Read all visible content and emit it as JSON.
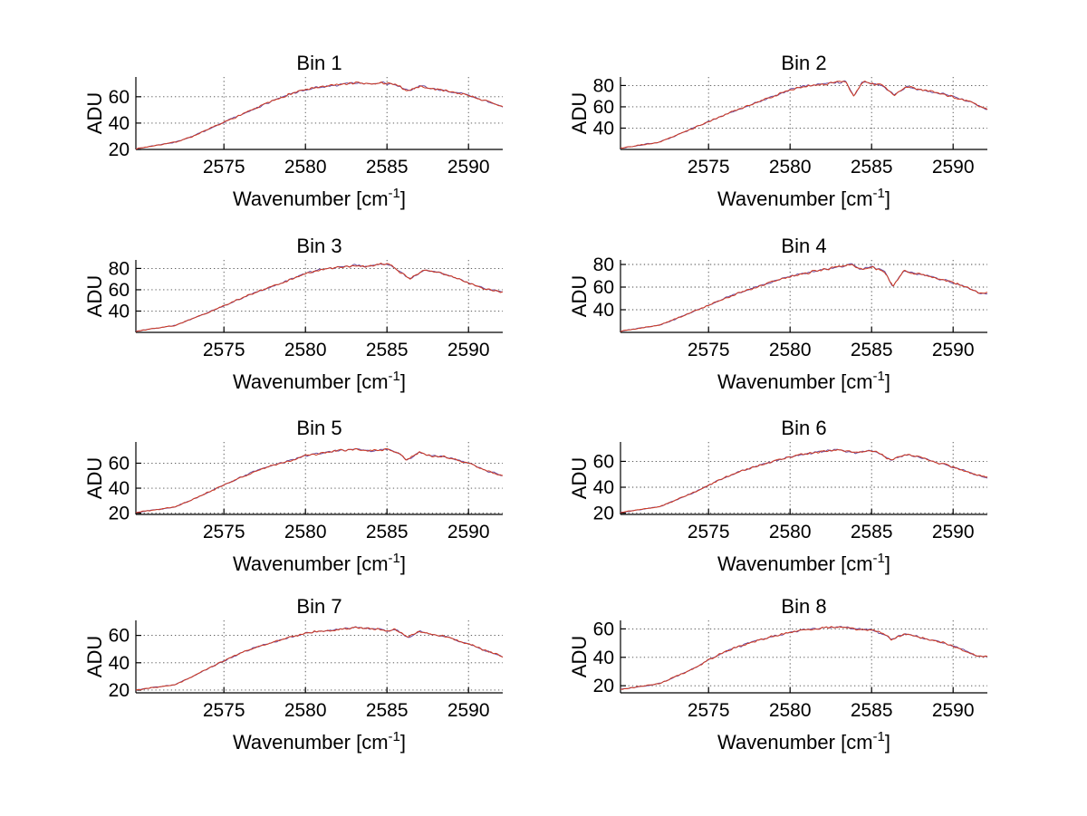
{
  "figure": {
    "background": "#ffffff",
    "ylabel": "ADU",
    "xlabel": "Wavenumber [cm^-1]",
    "xlabel_render": {
      "pre": "Wavenumber [cm",
      "sup": "-1",
      "post": "]"
    },
    "grid": "dotted",
    "legend": "none",
    "colors": {
      "axis": "#000000",
      "grid": "#474747",
      "text": "#000000",
      "line_under": "#6a4a9e",
      "line_top": "#cf3a20"
    }
  },
  "chart_data": [
    {
      "type": "line",
      "title": "Bin 1",
      "xlabel": "Wavenumber [cm^-1]",
      "ylabel": "ADU",
      "xlim": [
        2569.6,
        2592.1
      ],
      "ylim": [
        20,
        75
      ],
      "xticks": [
        2575,
        2580,
        2585,
        2590
      ],
      "yticks": [
        20,
        40,
        60
      ],
      "noise": 1.2,
      "points": [
        [
          2569.6,
          20.5
        ],
        [
          2572,
          25.5
        ],
        [
          2573,
          29.5
        ],
        [
          2574,
          35
        ],
        [
          2575,
          40.5
        ],
        [
          2576,
          46
        ],
        [
          2577,
          51.5
        ],
        [
          2578,
          57
        ],
        [
          2579,
          62
        ],
        [
          2580,
          65.5
        ],
        [
          2581,
          67.5
        ],
        [
          2582,
          69
        ],
        [
          2583,
          70.5
        ],
        [
          2584,
          69.5
        ],
        [
          2584.8,
          70.5
        ],
        [
          2585.5,
          69
        ],
        [
          2586.3,
          64.5
        ],
        [
          2587,
          68
        ],
        [
          2587.8,
          66
        ],
        [
          2588.5,
          65
        ],
        [
          2589.3,
          63
        ],
        [
          2590,
          61
        ],
        [
          2591,
          57
        ],
        [
          2592.1,
          52.5
        ]
      ]
    },
    {
      "type": "line",
      "title": "Bin 2",
      "xlabel": "Wavenumber [cm^-1]",
      "ylabel": "ADU",
      "xlim": [
        2569.6,
        2592.1
      ],
      "ylim": [
        20,
        88
      ],
      "xticks": [
        2575,
        2580,
        2585,
        2590
      ],
      "yticks": [
        40,
        60,
        80
      ],
      "noise": 1.5,
      "points": [
        [
          2569.6,
          21
        ],
        [
          2572,
          27
        ],
        [
          2573,
          33
        ],
        [
          2574,
          39.5
        ],
        [
          2575,
          46
        ],
        [
          2576,
          52.5
        ],
        [
          2577,
          58.5
        ],
        [
          2578,
          64.5
        ],
        [
          2579,
          70
        ],
        [
          2580,
          76
        ],
        [
          2580.8,
          79
        ],
        [
          2581.5,
          80.5
        ],
        [
          2582.5,
          82
        ],
        [
          2583.4,
          83.5
        ],
        [
          2583.9,
          70
        ],
        [
          2584.4,
          83
        ],
        [
          2585,
          82
        ],
        [
          2585.6,
          80.5
        ],
        [
          2586.4,
          71
        ],
        [
          2587.2,
          79
        ],
        [
          2588,
          76
        ],
        [
          2589,
          73.5
        ],
        [
          2590,
          69.5
        ],
        [
          2591,
          65
        ],
        [
          2592.1,
          57.5
        ]
      ]
    },
    {
      "type": "line",
      "title": "Bin 3",
      "xlabel": "Wavenumber [cm^-1]",
      "ylabel": "ADU",
      "xlim": [
        2569.6,
        2592.1
      ],
      "ylim": [
        20,
        88
      ],
      "xticks": [
        2575,
        2580,
        2585,
        2590
      ],
      "yticks": [
        40,
        60,
        80
      ],
      "noise": 1.4,
      "points": [
        [
          2569.6,
          21
        ],
        [
          2572,
          26.5
        ],
        [
          2573,
          32.5
        ],
        [
          2574,
          38.5
        ],
        [
          2575,
          45
        ],
        [
          2576,
          51.5
        ],
        [
          2577,
          58
        ],
        [
          2578,
          63.5
        ],
        [
          2579,
          69
        ],
        [
          2580,
          75.5
        ],
        [
          2581,
          79
        ],
        [
          2582,
          81
        ],
        [
          2583,
          83
        ],
        [
          2583.8,
          81.5
        ],
        [
          2584.6,
          84.5
        ],
        [
          2585.2,
          83.5
        ],
        [
          2586.4,
          70.5
        ],
        [
          2587.3,
          78.5
        ],
        [
          2588,
          77
        ],
        [
          2589,
          72.5
        ],
        [
          2590,
          66.5
        ],
        [
          2591,
          61
        ],
        [
          2592.1,
          57.5
        ]
      ]
    },
    {
      "type": "line",
      "title": "Bin 4",
      "xlabel": "Wavenumber [cm^-1]",
      "ylabel": "ADU",
      "xlim": [
        2569.6,
        2592.1
      ],
      "ylim": [
        20,
        84
      ],
      "xticks": [
        2575,
        2580,
        2585,
        2590
      ],
      "yticks": [
        40,
        60,
        80
      ],
      "noise": 1.4,
      "points": [
        [
          2569.6,
          21
        ],
        [
          2572,
          26.5
        ],
        [
          2573,
          32
        ],
        [
          2574,
          38
        ],
        [
          2575,
          44
        ],
        [
          2576,
          50
        ],
        [
          2577,
          55.5
        ],
        [
          2578,
          60.5
        ],
        [
          2579,
          65
        ],
        [
          2580,
          69.5
        ],
        [
          2581,
          72.5
        ],
        [
          2582,
          75.5
        ],
        [
          2583,
          78
        ],
        [
          2583.8,
          80
        ],
        [
          2584.3,
          76
        ],
        [
          2585,
          77.5
        ],
        [
          2585.8,
          74
        ],
        [
          2586.3,
          60.5
        ],
        [
          2587,
          74.5
        ],
        [
          2587.6,
          72
        ],
        [
          2588.3,
          70.5
        ],
        [
          2589,
          68
        ],
        [
          2590,
          64
        ],
        [
          2591,
          59
        ],
        [
          2591.7,
          54
        ],
        [
          2592.1,
          55
        ]
      ]
    },
    {
      "type": "line",
      "title": "Bin 5",
      "xlabel": "Wavenumber [cm^-1]",
      "ylabel": "ADU",
      "xlim": [
        2569.6,
        2592.1
      ],
      "ylim": [
        19,
        77
      ],
      "xticks": [
        2575,
        2580,
        2585,
        2590
      ],
      "yticks": [
        20,
        40,
        60
      ],
      "noise": 1.2,
      "points": [
        [
          2569.6,
          20.5
        ],
        [
          2572,
          25
        ],
        [
          2573,
          30.5
        ],
        [
          2574,
          36.5
        ],
        [
          2575,
          42.5
        ],
        [
          2576,
          48.5
        ],
        [
          2577,
          54
        ],
        [
          2578,
          58.5
        ],
        [
          2579,
          62
        ],
        [
          2580,
          66
        ],
        [
          2581,
          68
        ],
        [
          2582,
          70
        ],
        [
          2583,
          71
        ],
        [
          2584,
          70
        ],
        [
          2585,
          71
        ],
        [
          2585.7,
          68.5
        ],
        [
          2586.2,
          62.5
        ],
        [
          2587,
          68.5
        ],
        [
          2587.7,
          66
        ],
        [
          2588.5,
          65
        ],
        [
          2589.3,
          62.5
        ],
        [
          2590,
          60
        ],
        [
          2591,
          54.5
        ],
        [
          2592.1,
          50
        ]
      ]
    },
    {
      "type": "line",
      "title": "Bin 6",
      "xlabel": "Wavenumber [cm^-1]",
      "ylabel": "ADU",
      "xlim": [
        2569.6,
        2592.1
      ],
      "ylim": [
        19,
        75
      ],
      "xticks": [
        2575,
        2580,
        2585,
        2590
      ],
      "yticks": [
        20,
        40,
        60
      ],
      "noise": 1.2,
      "points": [
        [
          2569.6,
          20.5
        ],
        [
          2572,
          25
        ],
        [
          2573,
          30
        ],
        [
          2574,
          35.5
        ],
        [
          2575,
          41.5
        ],
        [
          2576,
          47.5
        ],
        [
          2577,
          52.5
        ],
        [
          2578,
          56.5
        ],
        [
          2579,
          60
        ],
        [
          2580,
          63.5
        ],
        [
          2581,
          66
        ],
        [
          2582,
          67.5
        ],
        [
          2583,
          69
        ],
        [
          2584,
          66.5
        ],
        [
          2584.8,
          68.5
        ],
        [
          2585.5,
          66
        ],
        [
          2586.2,
          61
        ],
        [
          2587,
          65
        ],
        [
          2587.8,
          64
        ],
        [
          2588.5,
          61
        ],
        [
          2589.5,
          57.5
        ],
        [
          2590.5,
          53.5
        ],
        [
          2591.3,
          50
        ],
        [
          2592.1,
          47.5
        ]
      ]
    },
    {
      "type": "line",
      "title": "Bin 7",
      "xlabel": "Wavenumber [cm^-1]",
      "ylabel": "ADU",
      "xlim": [
        2569.6,
        2592.1
      ],
      "ylim": [
        18,
        71
      ],
      "xticks": [
        2575,
        2580,
        2585,
        2590
      ],
      "yticks": [
        20,
        40,
        60
      ],
      "noise": 1.1,
      "points": [
        [
          2569.6,
          20
        ],
        [
          2572,
          24
        ],
        [
          2573,
          29.5
        ],
        [
          2574,
          35.5
        ],
        [
          2575,
          41.5
        ],
        [
          2576,
          47
        ],
        [
          2577,
          51.5
        ],
        [
          2578,
          55
        ],
        [
          2579,
          58.5
        ],
        [
          2580,
          61.5
        ],
        [
          2581,
          63.5
        ],
        [
          2582,
          64
        ],
        [
          2583,
          66
        ],
        [
          2584,
          65
        ],
        [
          2585,
          63.5
        ],
        [
          2585.5,
          64.5
        ],
        [
          2586.3,
          58.5
        ],
        [
          2587,
          63
        ],
        [
          2588,
          60
        ],
        [
          2588.8,
          58.5
        ],
        [
          2589.5,
          55.5
        ],
        [
          2590.3,
          52.5
        ],
        [
          2591,
          49
        ],
        [
          2592.1,
          44.5
        ]
      ]
    },
    {
      "type": "line",
      "title": "Bin 8",
      "xlabel": "Wavenumber [cm^-1]",
      "ylabel": "ADU",
      "xlim": [
        2569.6,
        2592.1
      ],
      "ylim": [
        15,
        66
      ],
      "xticks": [
        2575,
        2580,
        2585,
        2590
      ],
      "yticks": [
        20,
        40,
        60
      ],
      "noise": 1.2,
      "points": [
        [
          2569.6,
          17.5
        ],
        [
          2572,
          21.5
        ],
        [
          2573,
          26.5
        ],
        [
          2574,
          31.5
        ],
        [
          2575,
          38
        ],
        [
          2576,
          44
        ],
        [
          2577,
          48
        ],
        [
          2578,
          52
        ],
        [
          2579,
          55
        ],
        [
          2580,
          57.5
        ],
        [
          2581,
          59.5
        ],
        [
          2582,
          60.5
        ],
        [
          2583,
          61.5
        ],
        [
          2584,
          60
        ],
        [
          2585,
          59
        ],
        [
          2585.8,
          56
        ],
        [
          2586.2,
          52.5
        ],
        [
          2587,
          56.5
        ],
        [
          2588,
          54
        ],
        [
          2588.8,
          52
        ],
        [
          2589.5,
          50
        ],
        [
          2590.3,
          46.5
        ],
        [
          2591,
          43.5
        ],
        [
          2591.6,
          40.5
        ],
        [
          2592.1,
          41
        ]
      ]
    }
  ]
}
